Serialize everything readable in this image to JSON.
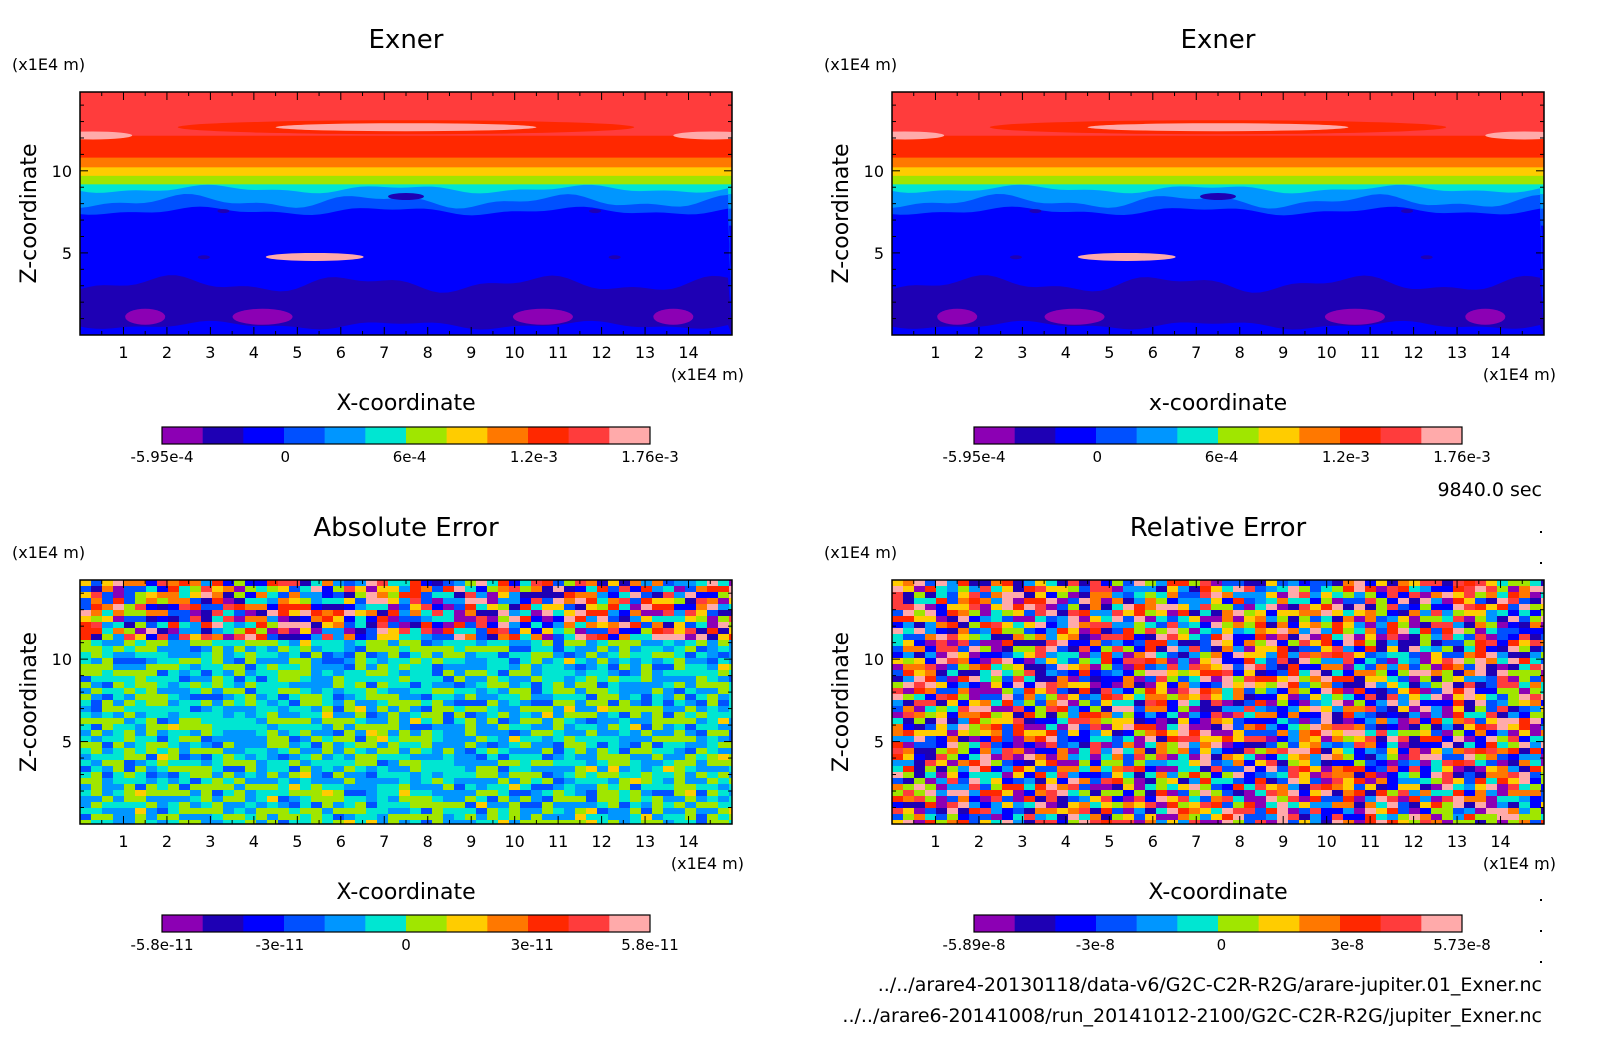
{
  "footer": {
    "time_label": "9840.0 sec",
    "file_1": "../../arare4-20130118/data-v6/G2C-C2R-R2G/arare-jupiter.01_Exner.nc",
    "file_2": "../../arare6-20141008/run_20141012-2100/G2C-C2R-R2G/jupiter_Exner.nc"
  },
  "palette": [
    "#8c00b4",
    "#1e00b4",
    "#0000ff",
    "#0050ff",
    "#0096ff",
    "#00e6d2",
    "#a0e600",
    "#ffcc00",
    "#ff7800",
    "#ff2800",
    "#ff3c3c",
    "#ffaaaa"
  ],
  "chart_data": [
    {
      "type": "heatmap",
      "title": "Exner",
      "xlabel": "X-coordinate",
      "ylabel": "Z-coordinate",
      "x_unit": "(x1E4 m)",
      "y_unit": "(x1E4 m)",
      "xlim": [
        0,
        15
      ],
      "ylim": [
        0,
        14.8
      ],
      "x_ticks": [
        "1",
        "2",
        "3",
        "4",
        "5",
        "6",
        "7",
        "8",
        "9",
        "10",
        "11",
        "12",
        "13",
        "14"
      ],
      "y_ticks": [
        "5",
        "10"
      ],
      "colorbar": {
        "ticks": [
          "-5.95e-4",
          "0",
          "6e-4",
          "1.2e-3",
          "1.76e-3"
        ],
        "min": -0.000595,
        "max": 0.00176
      },
      "field": "exner"
    },
    {
      "type": "heatmap",
      "title": "Exner",
      "xlabel": "x-coordinate",
      "ylabel": "Z-coordinate",
      "x_unit": "(x1E4 m)",
      "y_unit": "(x1E4 m)",
      "xlim": [
        0,
        15
      ],
      "ylim": [
        0,
        14.8
      ],
      "x_ticks": [
        "1",
        "2",
        "3",
        "4",
        "5",
        "6",
        "7",
        "8",
        "9",
        "10",
        "11",
        "12",
        "13",
        "14"
      ],
      "y_ticks": [
        "5",
        "10"
      ],
      "colorbar": {
        "ticks": [
          "-5.95e-4",
          "0",
          "6e-4",
          "1.2e-3",
          "1.76e-3"
        ],
        "min": -0.000595,
        "max": 0.00176
      },
      "field": "exner"
    },
    {
      "type": "heatmap",
      "title": "Absolute Error",
      "xlabel": "X-coordinate",
      "ylabel": "Z-coordinate",
      "x_unit": "(x1E4 m)",
      "y_unit": "(x1E4 m)",
      "xlim": [
        0,
        15
      ],
      "ylim": [
        0,
        14.8
      ],
      "x_ticks": [
        "1",
        "2",
        "3",
        "4",
        "5",
        "6",
        "7",
        "8",
        "9",
        "10",
        "11",
        "12",
        "13",
        "14"
      ],
      "y_ticks": [
        "5",
        "10"
      ],
      "colorbar": {
        "ticks": [
          "-5.8e-11",
          "-3e-11",
          "0",
          "3e-11",
          "5.8e-11"
        ],
        "min": -5.8e-11,
        "max": 5.8e-11
      },
      "field": "abs_error"
    },
    {
      "type": "heatmap",
      "title": "Relative Error",
      "xlabel": "X-coordinate",
      "ylabel": "Z-coordinate",
      "x_unit": "(x1E4 m)",
      "y_unit": "(x1E4 m)",
      "xlim": [
        0,
        15
      ],
      "ylim": [
        0,
        14.8
      ],
      "x_ticks": [
        "1",
        "2",
        "3",
        "4",
        "5",
        "6",
        "7",
        "8",
        "9",
        "10",
        "11",
        "12",
        "13",
        "14"
      ],
      "y_ticks": [
        "5",
        "10"
      ],
      "colorbar": {
        "ticks": [
          "-5.89e-8",
          "-3e-8",
          "0",
          "3e-8",
          "5.73e-8"
        ],
        "min": -5.89e-08,
        "max": 5.73e-08
      },
      "field": "rel_error"
    }
  ]
}
